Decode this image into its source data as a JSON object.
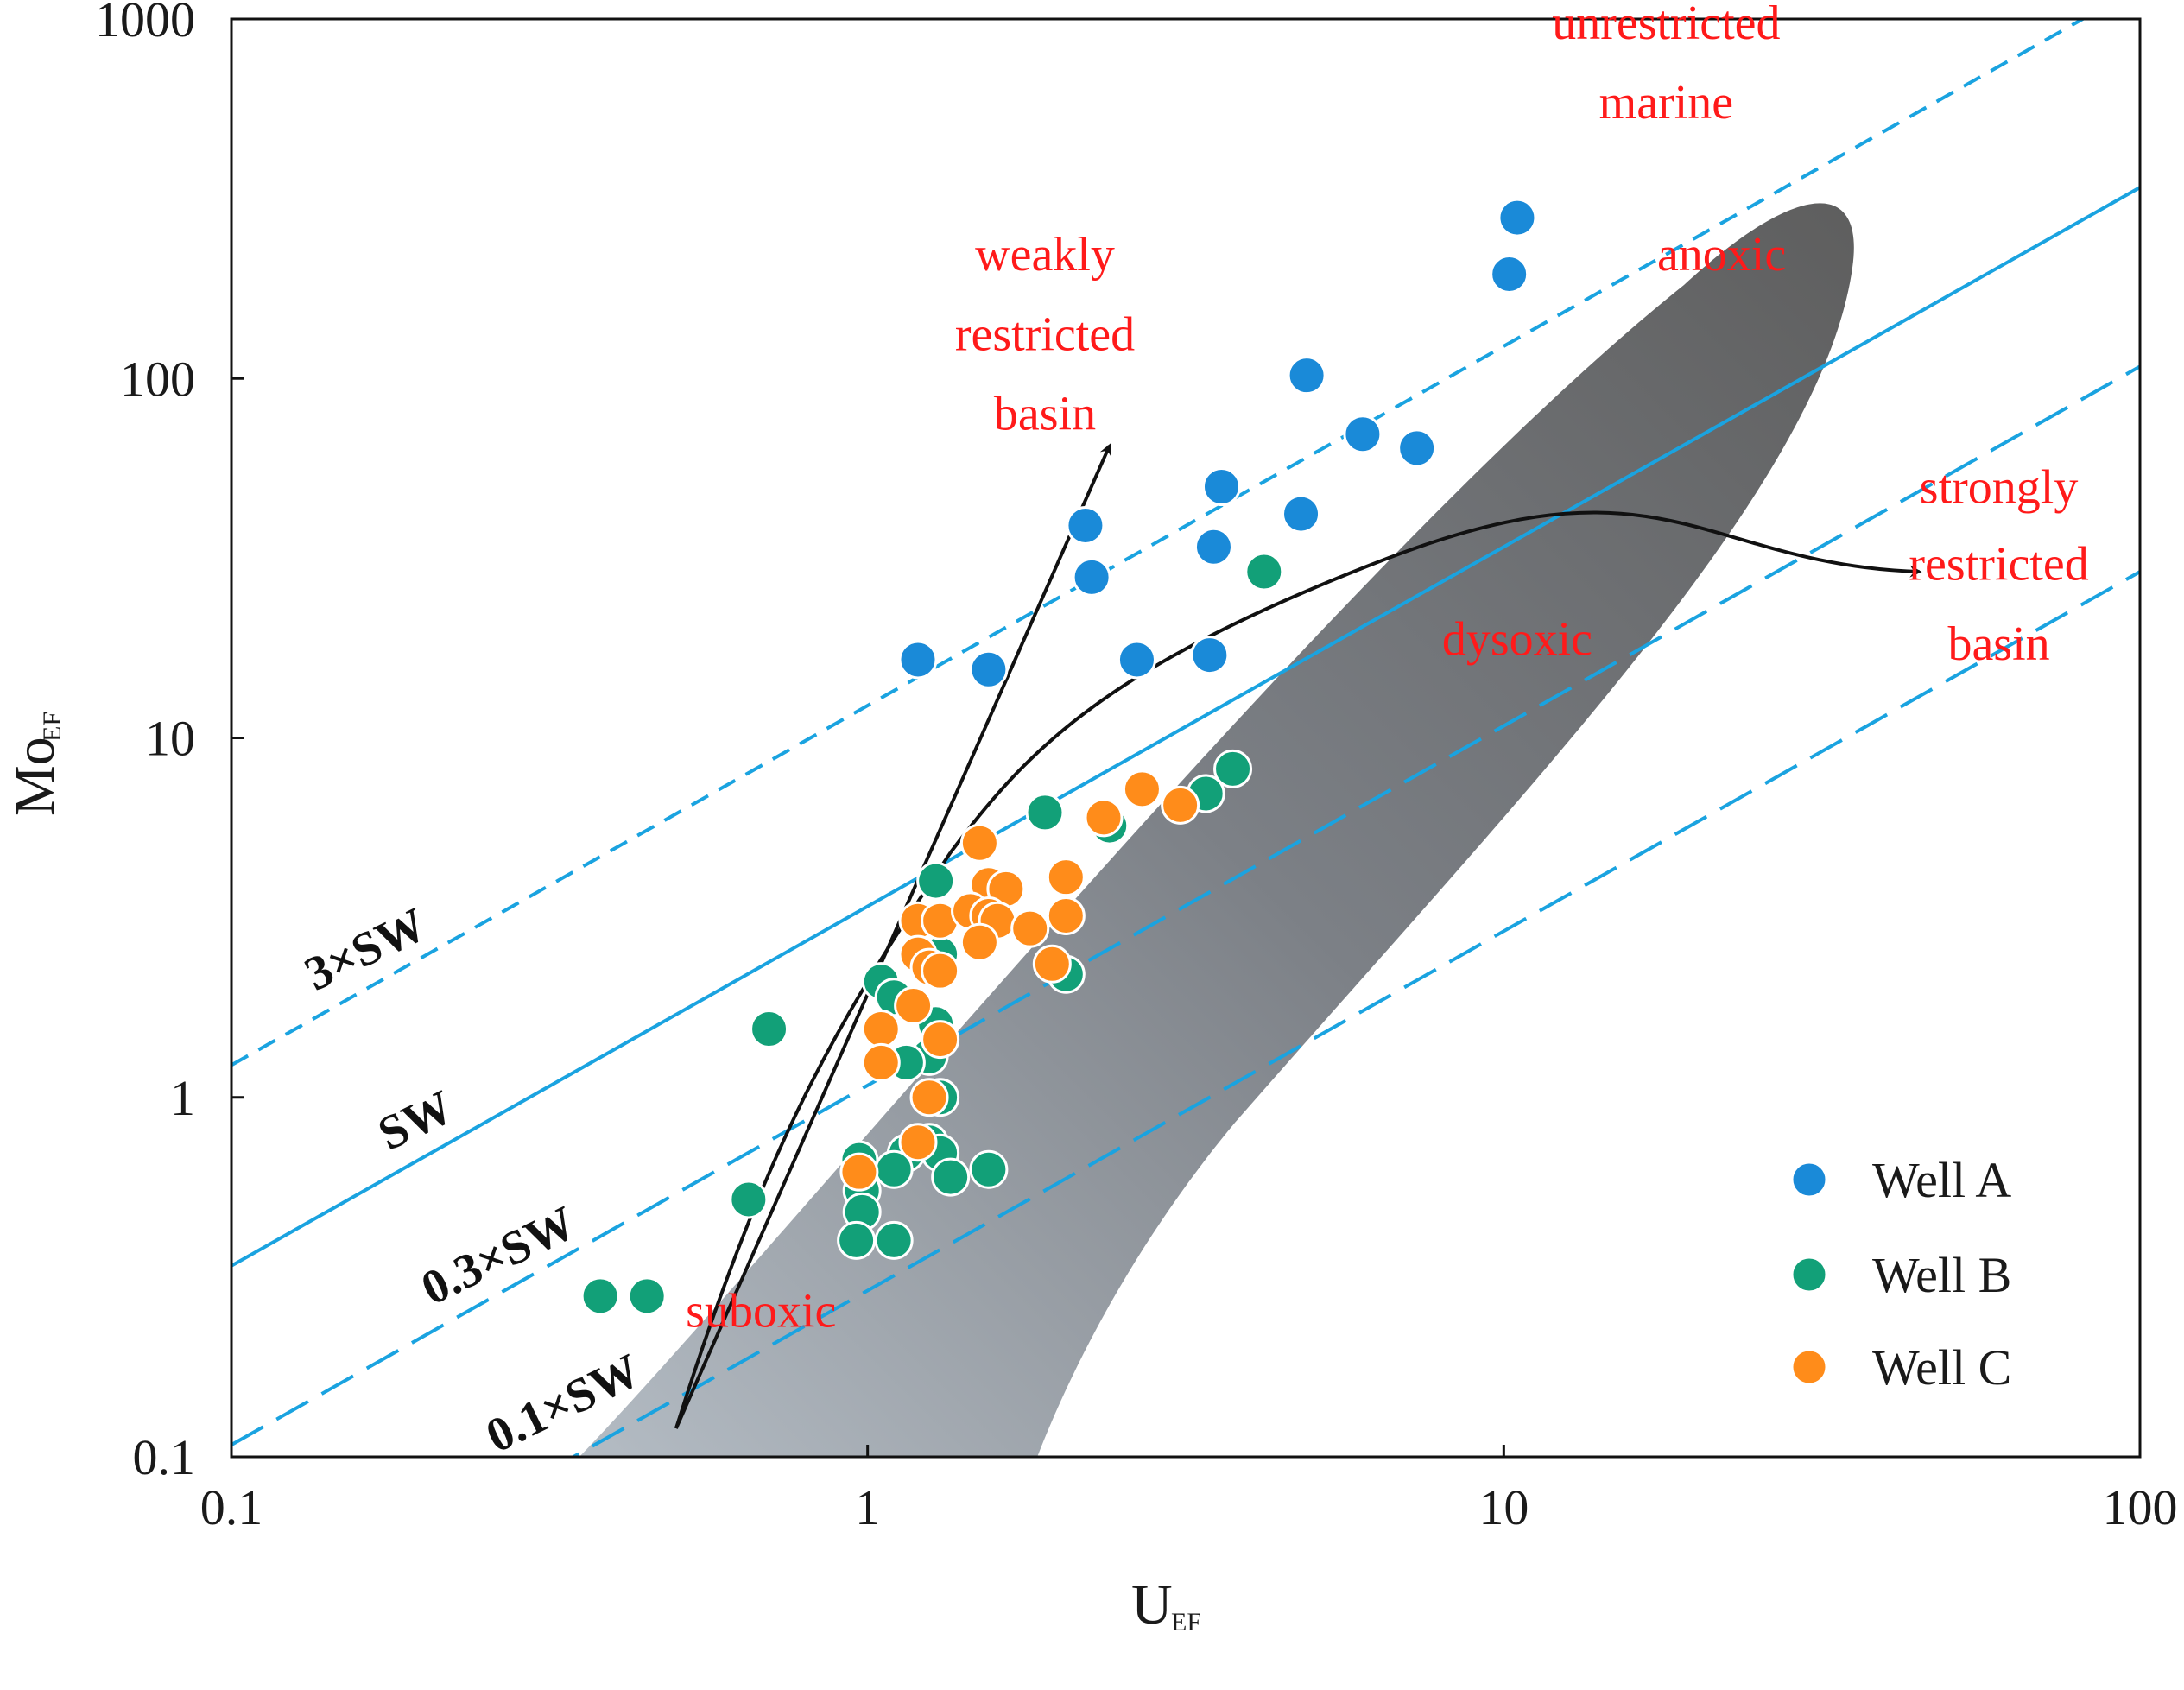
{
  "chart_data": {
    "type": "scatter",
    "xlabel": "U",
    "xlabel_sub": "EF",
    "ylabel": "Mo",
    "ylabel_sub": "EF",
    "xscale": "log",
    "yscale": "log",
    "xlim": [
      0.1,
      100
    ],
    "ylim": [
      0.1,
      1000
    ],
    "x_ticks": [
      {
        "value": 0.1,
        "label": "0.1"
      },
      {
        "value": 1,
        "label": "1"
      },
      {
        "value": 10,
        "label": "10"
      },
      {
        "value": 100,
        "label": "100"
      }
    ],
    "y_ticks": [
      {
        "value": 0.1,
        "label": "0.1"
      },
      {
        "value": 1,
        "label": "1"
      },
      {
        "value": 10,
        "label": "10"
      },
      {
        "value": 100,
        "label": "100"
      },
      {
        "value": 1000,
        "label": "1000"
      }
    ],
    "reference_lines": [
      {
        "name": "3×SW",
        "label": "3×SW",
        "factor": 12.3,
        "style": "short-dash",
        "color": "#1aa3e0"
      },
      {
        "name": "SW",
        "label": "SW",
        "factor": 3.4,
        "style": "solid",
        "color": "#1aa3e0"
      },
      {
        "name": "0.3×SW",
        "label": "0.3×SW",
        "factor": 1.08,
        "style": "long-dash",
        "color": "#1aa3e0"
      },
      {
        "name": "0.1×SW",
        "label": "0.1×SW",
        "factor": 0.29,
        "style": "long-dash",
        "color": "#1aa3e0"
      }
    ],
    "region_labels": [
      {
        "text": "unrestricted",
        "x": 18,
        "y": 880
      },
      {
        "text": "marine",
        "x": 18,
        "y": 530
      },
      {
        "text": "weakly",
        "x": 1.9,
        "y": 200
      },
      {
        "text": "restricted",
        "x": 1.9,
        "y": 120
      },
      {
        "text": "basin",
        "x": 1.9,
        "y": 72
      },
      {
        "text": "anoxic",
        "x": 22,
        "y": 200
      },
      {
        "text": "strongly",
        "x": 60,
        "y": 45
      },
      {
        "text": "restricted",
        "x": 60,
        "y": 27.5
      },
      {
        "text": "basin",
        "x": 60,
        "y": 16.5
      },
      {
        "text": "dysoxic",
        "x": 10.5,
        "y": 17
      },
      {
        "text": "suboxic",
        "x": 0.68,
        "y": 0.23
      }
    ],
    "series": [
      {
        "name": "Well A",
        "color": "#1a8ad8",
        "points": [
          [
            10.5,
            280
          ],
          [
            10.2,
            195
          ],
          [
            4.9,
            102
          ],
          [
            6.0,
            70
          ],
          [
            7.3,
            64
          ],
          [
            3.6,
            50
          ],
          [
            4.8,
            42
          ],
          [
            2.2,
            39
          ],
          [
            3.5,
            34
          ],
          [
            2.25,
            28
          ],
          [
            1.2,
            16.5
          ],
          [
            1.55,
            15.5
          ],
          [
            2.65,
            16.5
          ],
          [
            3.45,
            17
          ]
        ]
      },
      {
        "name": "Well B",
        "color": "#12a078",
        "points": [
          [
            4.2,
            29
          ],
          [
            3.75,
            8.2
          ],
          [
            3.4,
            7.0
          ],
          [
            1.9,
            6.2
          ],
          [
            2.4,
            5.7
          ],
          [
            1.28,
            4.0
          ],
          [
            1.3,
            2.5
          ],
          [
            1.05,
            2.1
          ],
          [
            1.1,
            1.9
          ],
          [
            2.05,
            2.2
          ],
          [
            0.7,
            1.55
          ],
          [
            1.28,
            1.6
          ],
          [
            1.25,
            1.3
          ],
          [
            1.15,
            1.25
          ],
          [
            1.3,
            1.0
          ],
          [
            1.15,
            0.7
          ],
          [
            1.25,
            0.75
          ],
          [
            1.3,
            0.7
          ],
          [
            1.55,
            0.63
          ],
          [
            0.97,
            0.67
          ],
          [
            1.1,
            0.63
          ],
          [
            1.35,
            0.6
          ],
          [
            0.98,
            0.55
          ],
          [
            0.98,
            0.48
          ],
          [
            0.96,
            0.4
          ],
          [
            1.1,
            0.4
          ],
          [
            0.65,
            0.52
          ],
          [
            0.38,
            0.28
          ],
          [
            0.45,
            0.28
          ]
        ]
      },
      {
        "name": "Well C",
        "color": "#ff8c1a",
        "points": [
          [
            1.5,
            5.1
          ],
          [
            2.7,
            7.2
          ],
          [
            3.1,
            6.5
          ],
          [
            2.35,
            6.0
          ],
          [
            1.55,
            3.9
          ],
          [
            1.65,
            3.8
          ],
          [
            2.05,
            4.1
          ],
          [
            1.2,
            3.1
          ],
          [
            1.3,
            3.1
          ],
          [
            1.45,
            3.3
          ],
          [
            1.55,
            3.2
          ],
          [
            1.6,
            3.1
          ],
          [
            1.8,
            2.95
          ],
          [
            2.05,
            3.2
          ],
          [
            1.5,
            2.7
          ],
          [
            1.2,
            2.5
          ],
          [
            1.25,
            2.3
          ],
          [
            1.3,
            2.25
          ],
          [
            1.95,
            2.35
          ],
          [
            1.18,
            1.8
          ],
          [
            1.05,
            1.55
          ],
          [
            1.3,
            1.45
          ],
          [
            1.05,
            1.25
          ],
          [
            1.25,
            1.0
          ],
          [
            1.2,
            0.75
          ],
          [
            0.97,
            0.62
          ]
        ]
      }
    ],
    "arrows": [
      {
        "name": "weakly-restricted-trend",
        "from": [
          0.5,
          0.12
        ],
        "to": [
          2.4,
          65
        ]
      },
      {
        "name": "strongly-restricted-trend",
        "from": [
          1.35,
          4.8
        ],
        "to": [
          45,
          29
        ]
      }
    ],
    "legend": {
      "position": "bottom-right"
    }
  }
}
